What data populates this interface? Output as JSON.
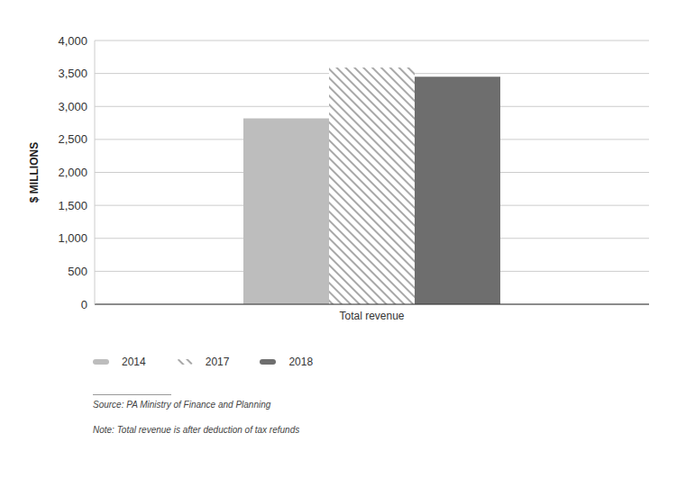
{
  "chart_data": {
    "type": "bar",
    "categories": [
      "Total revenue"
    ],
    "series": [
      {
        "name": "2014",
        "color": "#bdbdbd",
        "values": [
          2820
        ]
      },
      {
        "name": "2017",
        "color": "#a8a8a8",
        "values": [
          3590
        ]
      },
      {
        "name": "2018",
        "color": "#6e6e6e",
        "values": [
          3450
        ]
      }
    ],
    "y_label": "$ MILLIONS",
    "ylim": [
      0,
      4000
    ],
    "yticks": [
      0,
      500,
      {
        "value": 1000,
        "label": "1,000"
      },
      {
        "value": 1500,
        "label": "1,500"
      },
      {
        "value": 2000,
        "label": "2,000"
      },
      {
        "value": 2500,
        "label": "2,500"
      },
      {
        "value": 3000,
        "label": "3,000"
      },
      {
        "value": 3500,
        "label": "3,500"
      },
      {
        "value": 4000,
        "label": "4,000"
      }
    ],
    "grid": true,
    "legend": "bottom",
    "source": "Source: PA Ministry of Finance and Planning",
    "note": "Note: Total revenue is after deduction of tax refunds"
  }
}
